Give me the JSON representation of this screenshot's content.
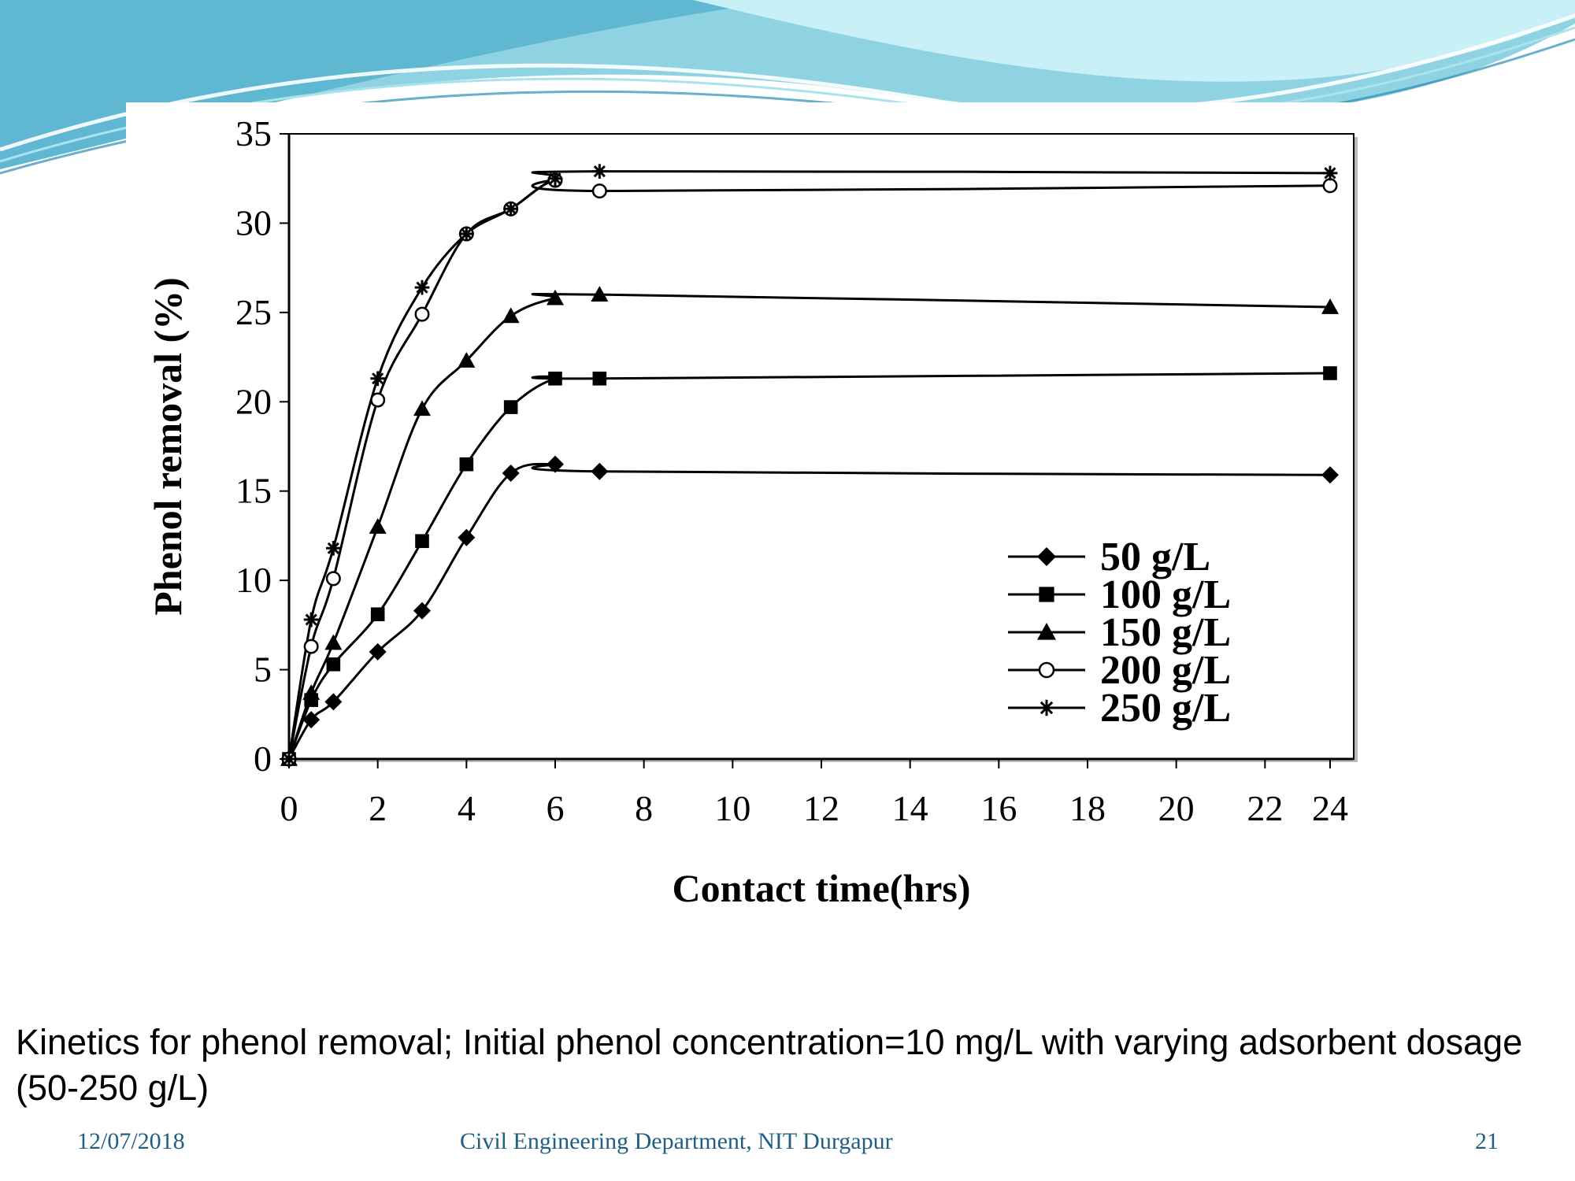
{
  "colors": {
    "wave_light": "#a9e3ee",
    "wave_mid": "#6cc3d8",
    "wave_dark": "#2a8fb3",
    "footer": "#1f5f82",
    "series": "#000000"
  },
  "chart_data": {
    "type": "line",
    "xlabel": "Contact time(hrs)",
    "ylabel": "Phenol removal (%)",
    "xlim": [
      0,
      24
    ],
    "ylim": [
      0,
      35
    ],
    "x_ticks": [
      "0",
      "2",
      "4",
      "6",
      "8",
      "10",
      "12",
      "14",
      "16",
      "18",
      "20",
      "22",
      "24"
    ],
    "y_ticks": [
      "0",
      "5",
      "10",
      "15",
      "20",
      "25",
      "30",
      "35"
    ],
    "legend_position": "lower-right",
    "grid": false,
    "series": [
      {
        "name": "50 g/L",
        "marker": "diamond",
        "x": [
          0,
          0.5,
          1,
          2,
          3,
          4,
          5,
          6,
          7,
          24
        ],
        "y": [
          0,
          2.2,
          3.2,
          6.0,
          8.3,
          12.4,
          16.0,
          16.5,
          16.1,
          15.9
        ]
      },
      {
        "name": "100 g/L",
        "marker": "square",
        "x": [
          0,
          0.5,
          1,
          2,
          3,
          4,
          5,
          6,
          7,
          24
        ],
        "y": [
          0,
          3.3,
          5.3,
          8.1,
          12.2,
          16.5,
          19.7,
          21.3,
          21.3,
          21.6
        ]
      },
      {
        "name": "150 g/L",
        "marker": "triangle",
        "x": [
          0,
          0.5,
          1,
          2,
          3,
          4,
          5,
          6,
          7,
          24
        ],
        "y": [
          0,
          3.7,
          6.5,
          13.0,
          19.6,
          22.3,
          24.8,
          25.8,
          26.0,
          25.3
        ]
      },
      {
        "name": "200 g/L",
        "marker": "circle",
        "x": [
          0,
          0.5,
          1,
          2,
          3,
          4,
          5,
          6,
          7,
          24
        ],
        "y": [
          0,
          6.3,
          10.1,
          20.1,
          24.9,
          29.4,
          30.8,
          32.4,
          31.8,
          32.1
        ]
      },
      {
        "name": "250 g/L",
        "marker": "star",
        "x": [
          0,
          0.5,
          1,
          2,
          3,
          4,
          5,
          6,
          7,
          24
        ],
        "y": [
          0,
          7.8,
          11.8,
          21.3,
          26.4,
          29.4,
          30.8,
          32.5,
          32.9,
          32.8
        ]
      }
    ]
  },
  "caption": "Kinetics for phenol removal; Initial phenol concentration=10 mg/L with varying adsorbent dosage (50-250 g/L)",
  "footer": {
    "date": "12/07/2018",
    "department": "Civil Engineering Department, NIT Durgapur",
    "page": "21"
  }
}
